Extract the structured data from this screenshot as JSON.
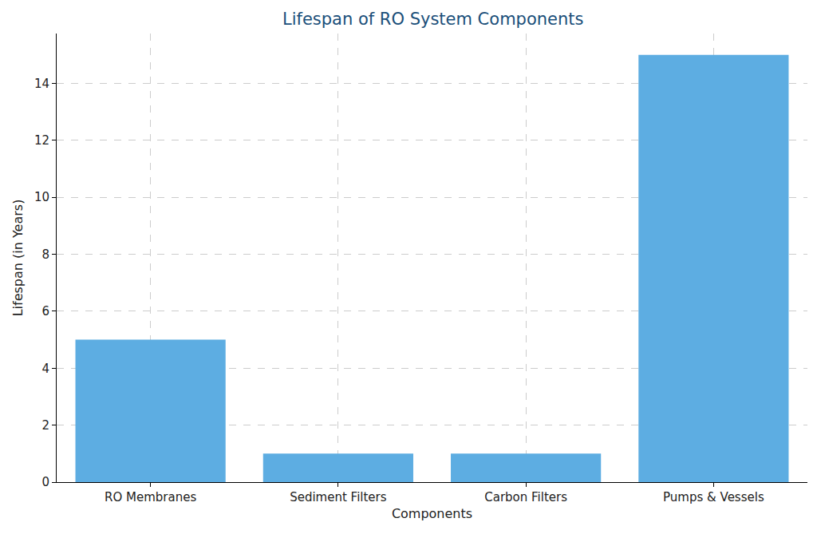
{
  "chart_data": {
    "type": "bar",
    "title": "Lifespan of RO System Components",
    "x_label": "Components",
    "y_label": "Lifespan (in Years)",
    "categories": [
      "RO Membranes",
      "Sediment Filters",
      "Carbon Filters",
      "Pumps & Vessels"
    ],
    "values": [
      5,
      1,
      1,
      15
    ],
    "color": "#5dade2",
    "ylim": [
      0,
      15.75
    ],
    "yticks": [
      0,
      2,
      4,
      6,
      8,
      10,
      12,
      14
    ],
    "grid": true
  }
}
